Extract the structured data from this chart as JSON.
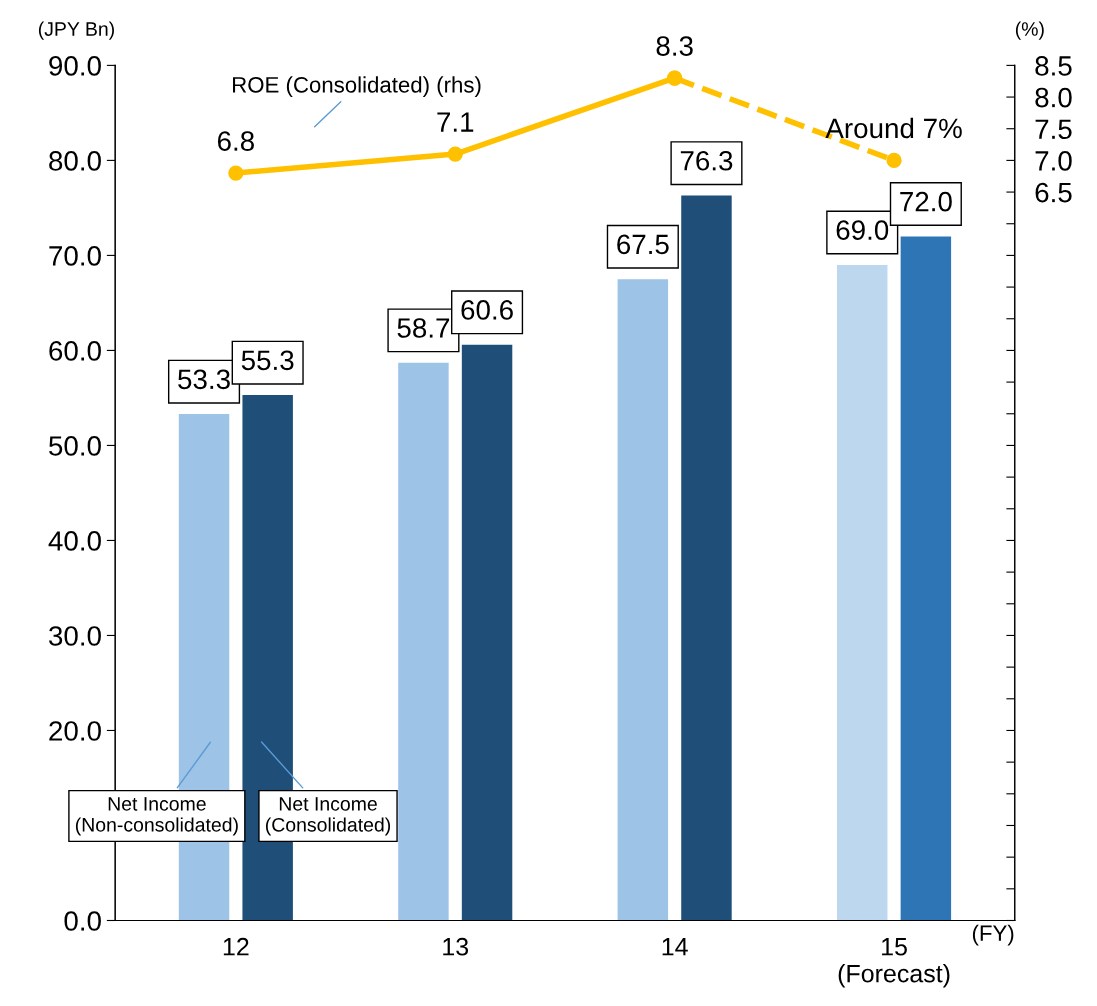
{
  "chart_data": {
    "type": "bar",
    "categories": [
      "12",
      "13",
      "14",
      "15\n(Forecast)"
    ],
    "xlabel": "(FY)",
    "ylabel": "(JPY Bn)",
    "y2label": "(%)",
    "ylim": [
      0,
      90
    ],
    "yticks": [
      {
        "value": 0,
        "label": "0.0"
      },
      {
        "value": 10,
        "label": null
      },
      {
        "value": 20,
        "label": "20.0"
      },
      {
        "value": 30,
        "label": "30.0"
      },
      {
        "value": 40,
        "label": "40.0"
      },
      {
        "value": 50,
        "label": "50.0"
      },
      {
        "value": 60,
        "label": "60.0"
      },
      {
        "value": 70,
        "label": "70.0"
      },
      {
        "value": 80,
        "label": "80.0"
      },
      {
        "value": 90,
        "label": "90.0"
      }
    ],
    "y2lim": [
      -5,
      8.5
    ],
    "y2ticks": [
      {
        "value": -5,
        "label": null
      },
      {
        "value": -4.5,
        "label": null
      },
      {
        "value": -4,
        "label": null
      },
      {
        "value": -3.5,
        "label": null
      },
      {
        "value": -3,
        "label": null
      },
      {
        "value": -2.5,
        "label": null
      },
      {
        "value": -2,
        "label": null
      },
      {
        "value": -1.5,
        "label": null
      },
      {
        "value": -1,
        "label": null
      },
      {
        "value": -0.5,
        "label": null
      },
      {
        "value": 0,
        "label": null
      },
      {
        "value": 0.5,
        "label": null
      },
      {
        "value": 1,
        "label": null
      },
      {
        "value": 1.5,
        "label": null
      },
      {
        "value": 2,
        "label": null
      },
      {
        "value": 2.5,
        "label": null
      },
      {
        "value": 3,
        "label": null
      },
      {
        "value": 3.5,
        "label": null
      },
      {
        "value": 4,
        "label": null
      },
      {
        "value": 4.5,
        "label": null
      },
      {
        "value": 5,
        "label": null
      },
      {
        "value": 5.5,
        "label": null
      },
      {
        "value": 6,
        "label": null
      },
      {
        "value": 6.5,
        "label": "6.5"
      },
      {
        "value": 7,
        "label": "7.0"
      },
      {
        "value": 7.5,
        "label": "7.5"
      },
      {
        "value": 8,
        "label": "8.0"
      },
      {
        "value": 8.5,
        "label": "8.5"
      }
    ],
    "grid": false,
    "legend": false,
    "series": [
      {
        "name": "Net Income\n(Non-consolidated)",
        "color": "#9dc3e6",
        "colors": [
          "#9dc3e6",
          "#9dc3e6",
          "#9dc3e6",
          "#bdd7ee"
        ],
        "values": [
          53.3,
          58.7,
          67.5,
          69.0
        ],
        "value_labels": [
          "53.3",
          "58.7",
          "67.5",
          "69.0"
        ]
      },
      {
        "name": "Net Income\n(Consolidated)",
        "color": "#1f4e79",
        "colors": [
          "#1f4e79",
          "#1f4e79",
          "#1f4e79",
          "#2e75b6"
        ],
        "values": [
          55.3,
          60.6,
          76.3,
          72.0
        ],
        "value_labels": [
          "55.3",
          "60.6",
          "76.3",
          "72.0"
        ]
      },
      {
        "name": "ROE (Consolidated) (rhs)",
        "type": "line",
        "axis": "y2",
        "color": "#ffc000",
        "line_style": "solid",
        "marker": "circle",
        "values": [
          6.8,
          7.1,
          8.3,
          null
        ],
        "value_labels": [
          "6.8",
          "7.1",
          "8.3",
          null
        ]
      },
      {
        "type": "line",
        "axis": "y2",
        "color": "#ffc000",
        "line_style": "dashed",
        "marker": "circle",
        "values": [
          null,
          null,
          8.3,
          7.0
        ],
        "value_labels": [
          null,
          null,
          null,
          "Around 7%"
        ]
      }
    ]
  }
}
